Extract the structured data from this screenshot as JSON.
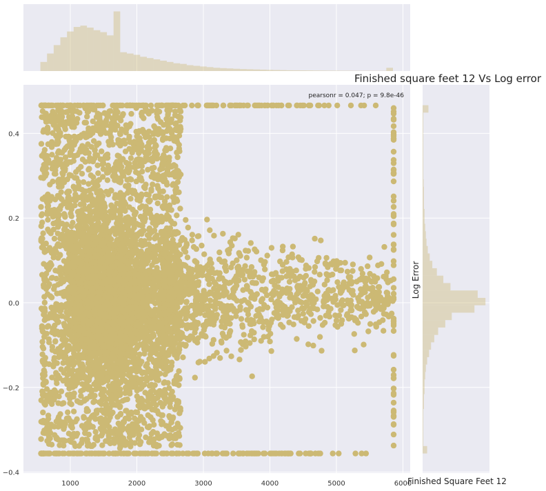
{
  "chart_data": {
    "type": "scatter",
    "title": "Finished square feet 12 Vs Log error",
    "xlabel": "Finished Square Feet 12",
    "ylabel": "Log Error",
    "annotation": "pearsonr = 0.047; p = 9.8e-46",
    "xlim": [
      300,
      6100
    ],
    "ylim": [
      -0.4,
      0.5
    ],
    "x_ticks": [
      1000,
      2000,
      3000,
      4000,
      5000,
      6000
    ],
    "x_tick_labels": [
      "1000",
      "2000",
      "3000",
      "4000",
      "5000",
      "6000"
    ],
    "y_ticks": [
      -0.4,
      -0.2,
      0.0,
      0.2,
      0.4
    ],
    "y_tick_labels": [
      "−0.4",
      "−0.2",
      "0.0",
      "0.2",
      "0.4"
    ],
    "grid": true,
    "colors": {
      "points": "#ccb974",
      "hist": "#ccb974",
      "plot_bg": "#eaeaf2",
      "grid": "#ffffff"
    },
    "scatter_summary": {
      "x_range": [
        550,
        5860
      ],
      "y_clip_low": -0.356,
      "y_clip_high": 0.466,
      "marginal_spike_x": 5860
    },
    "marginal_x_hist": {
      "bin_width": 100,
      "bin_starts": [
        550,
        650,
        750,
        850,
        950,
        1050,
        1150,
        1250,
        1350,
        1450,
        1550,
        1650,
        1750,
        1850,
        1950,
        2050,
        2150,
        2250,
        2350,
        2450,
        2550,
        2650,
        2750,
        2850,
        2950,
        3050,
        3150,
        3250,
        3350,
        3450,
        3550,
        3650,
        3750,
        3850,
        3950,
        4050,
        4150,
        4250,
        4350,
        4450,
        4550,
        4650,
        4750,
        4850,
        4950,
        5050,
        5150,
        5250,
        5350,
        5450,
        5550,
        5650,
        5750
      ],
      "relative_heights": [
        0.14,
        0.27,
        0.4,
        0.52,
        0.61,
        0.68,
        0.7,
        0.67,
        0.63,
        0.6,
        0.55,
        0.92,
        0.29,
        0.27,
        0.25,
        0.22,
        0.2,
        0.18,
        0.16,
        0.14,
        0.12,
        0.11,
        0.09,
        0.08,
        0.07,
        0.06,
        0.05,
        0.045,
        0.04,
        0.035,
        0.03,
        0.027,
        0.024,
        0.021,
        0.018,
        0.016,
        0.014,
        0.012,
        0.011,
        0.01,
        0.009,
        0.008,
        0.007,
        0.006,
        0.006,
        0.005,
        0.005,
        0.004,
        0.004,
        0.004,
        0.004,
        0.004,
        0.05
      ]
    },
    "marginal_y_hist": {
      "bin_width": 0.0175,
      "bin_starts": [
        -0.356,
        -0.3385,
        -0.321,
        -0.3035,
        -0.286,
        -0.2685,
        -0.251,
        -0.2335,
        -0.216,
        -0.1985,
        -0.181,
        -0.1635,
        -0.146,
        -0.1285,
        -0.111,
        -0.0935,
        -0.076,
        -0.0585,
        -0.041,
        -0.0235,
        -0.006,
        0.0115,
        0.029,
        0.0465,
        0.064,
        0.0815,
        0.099,
        0.1165,
        0.134,
        0.1515,
        0.169,
        0.1865,
        0.204,
        0.2215,
        0.239,
        0.2565,
        0.274,
        0.2915,
        0.309,
        0.3265,
        0.344,
        0.3615,
        0.379,
        0.3965,
        0.414,
        0.4315,
        0.449
      ],
      "relative_heights": [
        0.07,
        0.01,
        0.01,
        0.01,
        0.01,
        0.01,
        0.02,
        0.02,
        0.03,
        0.03,
        0.04,
        0.05,
        0.07,
        0.1,
        0.13,
        0.18,
        0.24,
        0.35,
        0.45,
        0.8,
        0.97,
        0.85,
        0.43,
        0.32,
        0.22,
        0.15,
        0.11,
        0.08,
        0.06,
        0.05,
        0.04,
        0.03,
        0.03,
        0.02,
        0.02,
        0.02,
        0.015,
        0.01,
        0.01,
        0.01,
        0.01,
        0.01,
        0.01,
        0.01,
        0.01,
        0.01,
        0.09
      ]
    }
  }
}
